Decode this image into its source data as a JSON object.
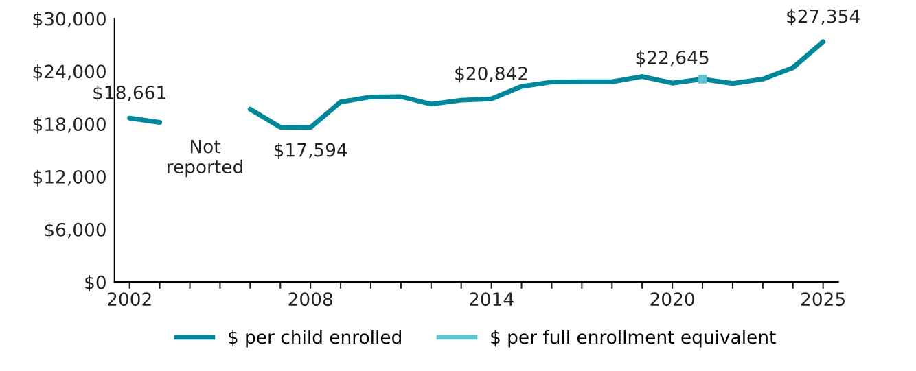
{
  "chart_data": {
    "type": "line",
    "x": [
      2002,
      2003,
      2004,
      2005,
      2006,
      2007,
      2008,
      2009,
      2010,
      2011,
      2012,
      2013,
      2014,
      2015,
      2016,
      2017,
      2018,
      2019,
      2020,
      2021,
      2022,
      2023,
      2024,
      2025
    ],
    "series": [
      {
        "name": "$ per child enrolled",
        "color": "#00879a",
        "values": [
          18661,
          18170,
          null,
          null,
          19680,
          17620,
          17594,
          20500,
          21070,
          21100,
          20250,
          20700,
          20842,
          22270,
          22770,
          22800,
          22800,
          23400,
          22645,
          23100,
          22600,
          23100,
          24400,
          27354
        ],
        "value_labels": [
          "$18,661",
          null,
          null,
          null,
          null,
          null,
          "$17,594",
          null,
          null,
          null,
          null,
          null,
          "$20,842",
          null,
          null,
          null,
          null,
          null,
          "$22,645",
          null,
          null,
          null,
          null,
          "$27,354"
        ]
      },
      {
        "name": "$ per full enrollment equivalent",
        "color": "#5bc4cf",
        "marker": "square",
        "values": [
          null,
          null,
          null,
          null,
          null,
          null,
          null,
          null,
          null,
          null,
          null,
          null,
          null,
          null,
          null,
          null,
          null,
          null,
          null,
          23100,
          null,
          null,
          null,
          null
        ]
      }
    ],
    "annotations": [
      "Not\nreported"
    ],
    "xlim": [
      2001.5,
      2025.5
    ],
    "xticks": [
      2002,
      {
        "value": 2003,
        "label": null
      },
      {
        "value": 2004,
        "label": null
      },
      {
        "value": 2005,
        "label": null
      },
      {
        "value": 2006,
        "label": null
      },
      {
        "value": 2007,
        "label": null
      },
      2008,
      {
        "value": 2009,
        "label": null
      },
      {
        "value": 2010,
        "label": null
      },
      {
        "value": 2011,
        "label": null
      },
      {
        "value": 2012,
        "label": null
      },
      {
        "value": 2013,
        "label": null
      },
      2014,
      {
        "value": 2015,
        "label": null
      },
      {
        "value": 2016,
        "label": null
      },
      {
        "value": 2017,
        "label": null
      },
      {
        "value": 2018,
        "label": null
      },
      {
        "value": 2019,
        "label": null
      },
      2020,
      {
        "value": 2021,
        "label": null
      },
      {
        "value": 2022,
        "label": null
      },
      {
        "value": 2023,
        "label": null
      },
      {
        "value": 2024,
        "label": null
      },
      2025
    ],
    "ylim": [
      0,
      30000
    ],
    "yticks": [
      {
        "value": 0,
        "label": "$0"
      },
      {
        "value": 6000,
        "label": "$6,000"
      },
      {
        "value": 12000,
        "label": "$12,000"
      },
      {
        "value": 18000,
        "label": "$18,000"
      },
      {
        "value": 24000,
        "label": "$24,000"
      },
      {
        "value": 30000,
        "label": "$30,000"
      }
    ],
    "grid": false,
    "legend": "bottom"
  }
}
